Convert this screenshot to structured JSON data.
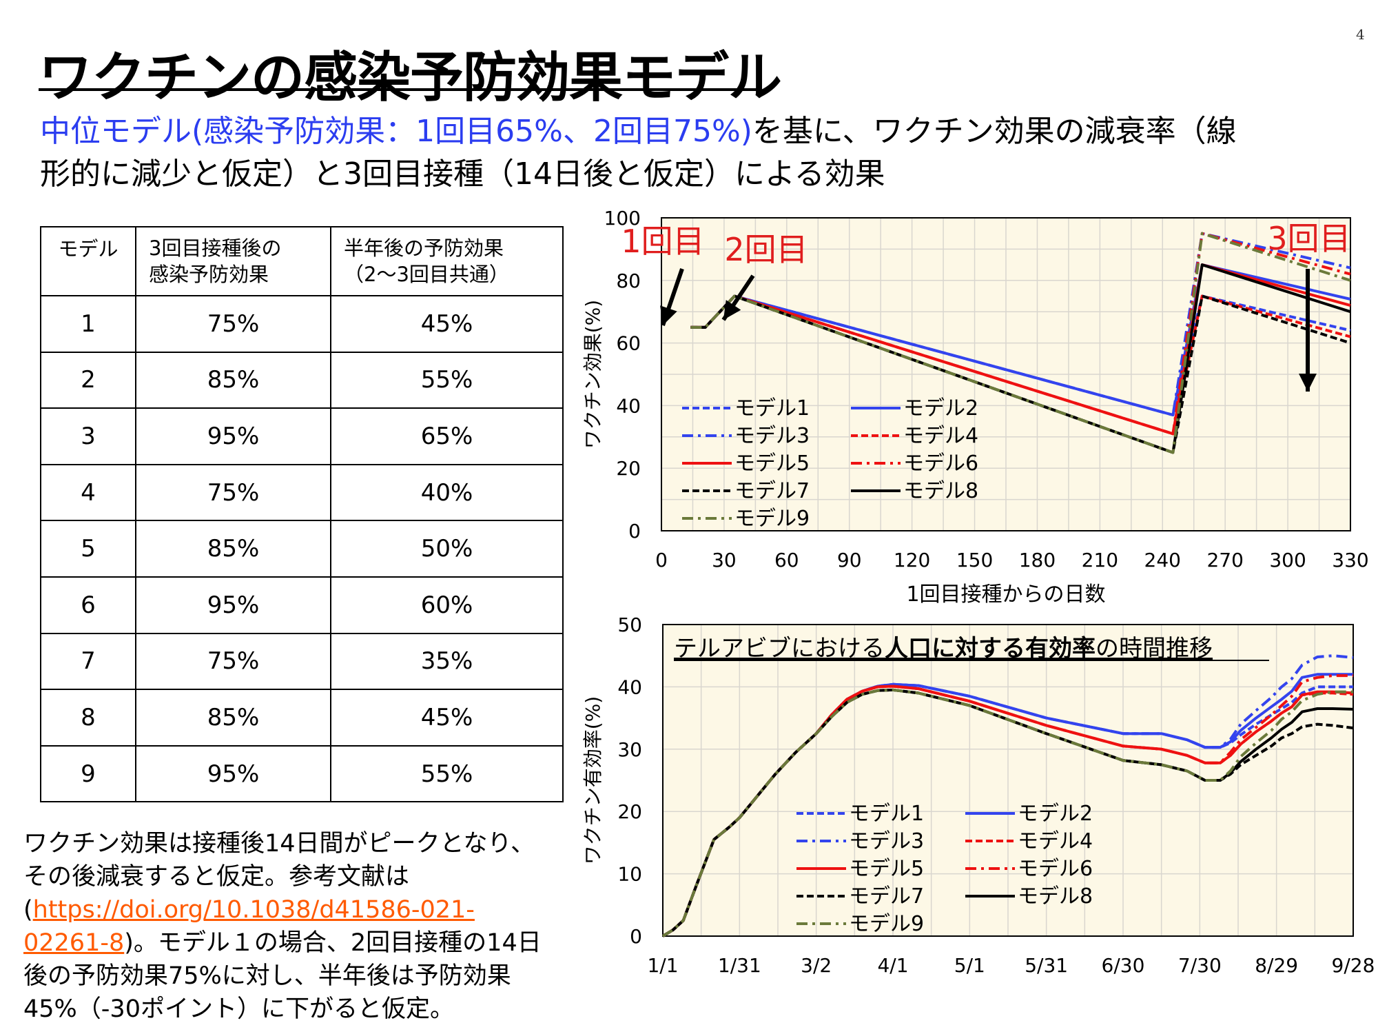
{
  "page_number": "4",
  "title": "ワクチンの感染予防効果モデル",
  "subtitle": {
    "highlight": "中位モデル(感染予防効果：1回目65%、2回目75%)",
    "rest_line1": "を基に、ワクチン効果の減衰率（線",
    "line2": "形的に減少と仮定）と3回目接種（14日後と仮定）による効果"
  },
  "table": {
    "headers": [
      "モデル",
      "3回目接種後の\n感染予防効果",
      "半年後の予防効果\n（2～3回目共通）"
    ],
    "rows": [
      [
        "1",
        "75%",
        "45%"
      ],
      [
        "2",
        "85%",
        "55%"
      ],
      [
        "3",
        "95%",
        "65%"
      ],
      [
        "4",
        "75%",
        "40%"
      ],
      [
        "5",
        "85%",
        "50%"
      ],
      [
        "6",
        "95%",
        "60%"
      ],
      [
        "7",
        "75%",
        "35%"
      ],
      [
        "8",
        "85%",
        "45%"
      ],
      [
        "9",
        "95%",
        "55%"
      ]
    ]
  },
  "note": {
    "text1": "ワクチン効果は接種後14日間がピークとなり、",
    "text2": "その後減衰すると仮定。参考文献は",
    "paren_open": "(",
    "link1": "https://doi.org/10.1038/d41586-021-",
    "link2": "02261-8",
    "text3": ")。モデル１の場合、2回目接種の14日",
    "text4": "後の予防効果75%に対し、半年後は予防効果",
    "text5": "45%（-30ポイント）に下がると仮定。"
  },
  "legend_styles": [
    {
      "name": "モデル1",
      "color": "#3344ee",
      "dash": "dash"
    },
    {
      "name": "モデル2",
      "color": "#3344ee",
      "dash": "solid"
    },
    {
      "name": "モデル3",
      "color": "#3344ee",
      "dash": "dashdot"
    },
    {
      "name": "モデル4",
      "color": "#ee1111",
      "dash": "dash"
    },
    {
      "name": "モデル5",
      "color": "#ee1111",
      "dash": "solid"
    },
    {
      "name": "モデル6",
      "color": "#ee1111",
      "dash": "dashdot"
    },
    {
      "name": "モデル7",
      "color": "#000000",
      "dash": "dash"
    },
    {
      "name": "モデル8",
      "color": "#000000",
      "dash": "solid"
    },
    {
      "name": "モデル9",
      "color": "#6b7a3a",
      "dash": "dashdot"
    }
  ],
  "chart_data": [
    {
      "type": "line",
      "xlabel": "1回目接種からの日数",
      "ylabel": "ワクチン効果(%)",
      "xlim": [
        0,
        330
      ],
      "ylim": [
        0,
        100
      ],
      "xticks": [
        0,
        30,
        60,
        90,
        120,
        150,
        180,
        210,
        240,
        270,
        300,
        330
      ],
      "yticks": [
        0,
        20,
        40,
        60,
        80,
        100
      ],
      "grid": true,
      "legend": "bottom-left",
      "annotations": [
        {
          "text": "1回目",
          "x": 0
        },
        {
          "text": "2回目",
          "x": 21
        },
        {
          "text": "3回目",
          "x": 245
        }
      ],
      "series": [
        {
          "name": "モデル1",
          "x": [
            14,
            21,
            35,
            245,
            259,
            330
          ],
          "y": [
            65,
            65,
            75,
            37,
            75,
            64
          ]
        },
        {
          "name": "モデル2",
          "x": [
            14,
            21,
            35,
            245,
            259,
            330
          ],
          "y": [
            65,
            65,
            75,
            37,
            85,
            74
          ]
        },
        {
          "name": "モデル3",
          "x": [
            14,
            21,
            35,
            245,
            259,
            330
          ],
          "y": [
            65,
            65,
            75,
            37,
            95,
            84
          ]
        },
        {
          "name": "モデル4",
          "x": [
            14,
            21,
            35,
            245,
            259,
            330
          ],
          "y": [
            65,
            65,
            75,
            31,
            75,
            62
          ]
        },
        {
          "name": "モデル5",
          "x": [
            14,
            21,
            35,
            245,
            259,
            330
          ],
          "y": [
            65,
            65,
            75,
            31,
            85,
            72
          ]
        },
        {
          "name": "モデル6",
          "x": [
            14,
            21,
            35,
            245,
            259,
            330
          ],
          "y": [
            65,
            65,
            75,
            31,
            95,
            82
          ]
        },
        {
          "name": "モデル7",
          "x": [
            14,
            21,
            35,
            245,
            259,
            330
          ],
          "y": [
            65,
            65,
            75,
            25,
            75,
            60
          ]
        },
        {
          "name": "モデル8",
          "x": [
            14,
            21,
            35,
            245,
            259,
            330
          ],
          "y": [
            65,
            65,
            75,
            25,
            85,
            70
          ]
        },
        {
          "name": "モデル9",
          "x": [
            14,
            21,
            35,
            245,
            259,
            330
          ],
          "y": [
            65,
            65,
            75,
            25,
            95,
            80
          ]
        }
      ]
    },
    {
      "type": "line",
      "title": "テルアビブにおける人口に対する有効率の時間推移",
      "title_bold": "人口に対する有効率",
      "xlabel": "",
      "ylabel": "ワクチン有効率(%)",
      "xlim": [
        0,
        270
      ],
      "ylim": [
        0,
        50
      ],
      "xticks": [
        0,
        30,
        60,
        90,
        120,
        150,
        180,
        210,
        240,
        270
      ],
      "xticklabels": [
        "1/1",
        "1/31",
        "3/2",
        "4/1",
        "5/1",
        "5/31",
        "6/30",
        "7/30",
        "8/29",
        "9/28"
      ],
      "yticks": [
        0,
        10,
        20,
        30,
        40,
        50
      ],
      "grid": true,
      "legend": "bottom-center",
      "series": [
        {
          "name": "モデル1",
          "x": [
            0,
            4,
            8,
            13,
            20,
            26,
            30,
            36,
            44,
            52,
            60,
            66,
            72,
            78,
            84,
            90,
            100,
            120,
            150,
            180,
            195,
            205,
            212,
            218,
            222,
            226,
            232,
            238,
            242,
            246,
            250,
            256,
            262,
            270
          ],
          "y": [
            0,
            1,
            2.5,
            8,
            15.5,
            17.5,
            19,
            22,
            26,
            29.5,
            32.5,
            35.5,
            38,
            39.3,
            40.1,
            40.4,
            40.2,
            38.5,
            35,
            32.5,
            32.5,
            31.5,
            30.3,
            30.3,
            31,
            32.3,
            34,
            35.5,
            36.5,
            37.5,
            39,
            40,
            40,
            40
          ]
        },
        {
          "name": "モデル2",
          "x": [
            0,
            4,
            8,
            13,
            20,
            26,
            30,
            36,
            44,
            52,
            60,
            66,
            72,
            78,
            84,
            90,
            100,
            120,
            150,
            180,
            195,
            205,
            212,
            218,
            222,
            226,
            232,
            238,
            242,
            246,
            250,
            256,
            262,
            270
          ],
          "y": [
            0,
            1,
            2.5,
            8,
            15.5,
            17.5,
            19,
            22,
            26,
            29.5,
            32.5,
            35.5,
            38,
            39.3,
            40.1,
            40.4,
            40.2,
            38.5,
            35,
            32.5,
            32.5,
            31.5,
            30.3,
            30.3,
            31.2,
            33,
            35,
            36.8,
            38,
            39.3,
            41.5,
            42,
            42,
            42
          ]
        },
        {
          "name": "モデル3",
          "x": [
            0,
            4,
            8,
            13,
            20,
            26,
            30,
            36,
            44,
            52,
            60,
            66,
            72,
            78,
            84,
            90,
            100,
            120,
            150,
            180,
            195,
            205,
            212,
            218,
            222,
            226,
            232,
            238,
            242,
            246,
            250,
            256,
            262,
            270
          ],
          "y": [
            0,
            1,
            2.5,
            8,
            15.5,
            17.5,
            19,
            22,
            26,
            29.5,
            32.5,
            35.5,
            38,
            39.3,
            40.1,
            40.4,
            40.2,
            38.5,
            35,
            32.5,
            32.5,
            31.5,
            30.3,
            30.3,
            31.6,
            34,
            36.2,
            38.3,
            40,
            41.3,
            43.5,
            44.8,
            45,
            44.7
          ]
        },
        {
          "name": "モデル4",
          "x": [
            0,
            4,
            8,
            13,
            20,
            26,
            30,
            36,
            44,
            52,
            60,
            66,
            72,
            78,
            84,
            90,
            100,
            120,
            150,
            180,
            195,
            205,
            212,
            218,
            222,
            226,
            232,
            238,
            242,
            246,
            250,
            256,
            262,
            270
          ],
          "y": [
            0,
            1,
            2.5,
            8,
            15.5,
            17.5,
            19,
            22,
            26,
            29.5,
            32.5,
            35.5,
            38,
            39.3,
            40,
            40.1,
            39.7,
            37.7,
            33.8,
            30.5,
            30,
            29,
            27.8,
            27.8,
            29,
            30.8,
            32.8,
            34.5,
            35.8,
            36.8,
            38.7,
            39,
            39,
            38.8
          ]
        },
        {
          "name": "モデル5",
          "x": [
            0,
            4,
            8,
            13,
            20,
            26,
            30,
            36,
            44,
            52,
            60,
            66,
            72,
            78,
            84,
            90,
            100,
            120,
            150,
            180,
            195,
            205,
            212,
            218,
            222,
            226,
            232,
            238,
            242,
            246,
            250,
            256,
            262,
            270
          ],
          "y": [
            0,
            1,
            2.5,
            8,
            15.5,
            17.5,
            19,
            22,
            26,
            29.5,
            32.5,
            35.5,
            38,
            39.3,
            40,
            40.1,
            39.7,
            37.7,
            33.8,
            30.5,
            30,
            29,
            27.8,
            27.8,
            29,
            30.8,
            32.8,
            34.5,
            35.8,
            36.8,
            38.7,
            39.2,
            39.2,
            39
          ]
        },
        {
          "name": "モデル6",
          "x": [
            0,
            4,
            8,
            13,
            20,
            26,
            30,
            36,
            44,
            52,
            60,
            66,
            72,
            78,
            84,
            90,
            100,
            120,
            150,
            180,
            195,
            205,
            212,
            218,
            222,
            226,
            232,
            238,
            242,
            246,
            250,
            256,
            262,
            270
          ],
          "y": [
            0,
            1,
            2.5,
            8,
            15.5,
            17.5,
            19,
            22,
            26,
            29.5,
            32.5,
            35.5,
            38,
            39.3,
            40,
            40.1,
            39.7,
            37.7,
            33.8,
            30.5,
            30,
            29,
            27.8,
            27.8,
            29.5,
            31.5,
            33.5,
            35.5,
            37,
            38.5,
            40.8,
            41.5,
            41.8,
            41.8
          ]
        },
        {
          "name": "モデル7",
          "x": [
            0,
            4,
            8,
            13,
            20,
            26,
            30,
            36,
            44,
            52,
            60,
            66,
            72,
            78,
            84,
            90,
            100,
            120,
            150,
            180,
            195,
            205,
            212,
            218,
            222,
            226,
            232,
            238,
            242,
            246,
            250,
            256,
            262,
            270
          ],
          "y": [
            0,
            1,
            2.5,
            8,
            15.5,
            17.5,
            19,
            22,
            26,
            29.5,
            32.5,
            35.2,
            37.5,
            38.8,
            39.4,
            39.5,
            39,
            37,
            32.5,
            28.2,
            27.5,
            26.5,
            25,
            25,
            26,
            27.5,
            29,
            30.5,
            31.8,
            32.5,
            33.6,
            34,
            33.8,
            33.4
          ]
        },
        {
          "name": "モデル8",
          "x": [
            0,
            4,
            8,
            13,
            20,
            26,
            30,
            36,
            44,
            52,
            60,
            66,
            72,
            78,
            84,
            90,
            100,
            120,
            150,
            180,
            195,
            205,
            212,
            218,
            222,
            226,
            232,
            238,
            242,
            246,
            250,
            256,
            262,
            270
          ],
          "y": [
            0,
            1,
            2.5,
            8,
            15.5,
            17.5,
            19,
            22,
            26,
            29.5,
            32.5,
            35.2,
            37.5,
            38.8,
            39.4,
            39.5,
            39,
            37,
            32.5,
            28.2,
            27.5,
            26.5,
            25,
            25,
            26.2,
            28,
            30,
            31.8,
            33.2,
            34.3,
            36,
            36.5,
            36.5,
            36.4
          ]
        },
        {
          "name": "モデル9",
          "x": [
            0,
            4,
            8,
            13,
            20,
            26,
            30,
            36,
            44,
            52,
            60,
            66,
            72,
            78,
            84,
            90,
            100,
            120,
            150,
            180,
            195,
            205,
            212,
            218,
            222,
            226,
            232,
            238,
            242,
            246,
            250,
            256,
            262,
            270
          ],
          "y": [
            0,
            1,
            2.5,
            8,
            15.5,
            17.5,
            19,
            22,
            26,
            29.5,
            32.5,
            35.2,
            37.5,
            38.8,
            39.4,
            39.5,
            39,
            37,
            32.5,
            28.2,
            27.5,
            26.5,
            25,
            25,
            26.5,
            28.8,
            31,
            33,
            34.8,
            36,
            37.8,
            38.8,
            39.2,
            39.2
          ]
        }
      ]
    }
  ]
}
